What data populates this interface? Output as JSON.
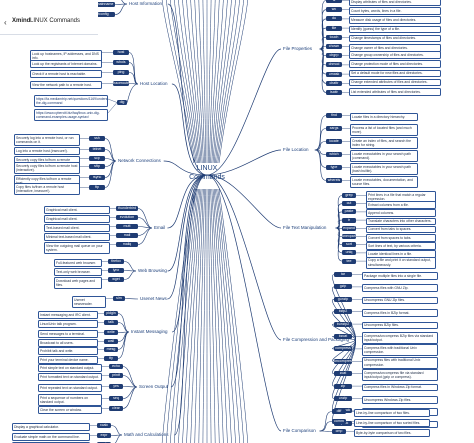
{
  "app": {
    "brand": "Xmind",
    "document_title": "LINUX Commands",
    "back_icon": "chevron-left-icon"
  },
  "center": {
    "line1": "LINUX",
    "line2": "Commands"
  },
  "topics": {
    "host_information": "Host Information",
    "host_location": "Host Location",
    "network_connections": "Network Connections",
    "email": "Email",
    "web_browsing": "Web Browsing",
    "usenet_news": "Usenet News",
    "instant_messaging": "Instant Messaging",
    "screen_output": "Screen Output",
    "math_calculations": "Math and Calculations",
    "file_properties": "File Properties",
    "file_location": "File Location",
    "file_text_manipulation": "File Text Manipulation",
    "file_compression": "File Compression and Packaging",
    "file_comparison": "File Comparison"
  },
  "host_information": {
    "items": [
      {
        "desc": "Same as hostname -d",
        "cmd": "dnsdomainname"
      },
      {
        "desc": "Same as hostname -n",
        "cmd": "domainname"
      },
      {
        "desc": "Older command to see and display network interface information.",
        "cmd": "ifconfig"
      }
    ]
  },
  "host_location": {
    "items": [
      {
        "desc": "Look up hostnames, IP addresses, and DNS info.",
        "cmd": "host"
      },
      {
        "desc": "Look up the registrants of Internet domains.",
        "cmd": "whois"
      },
      {
        "desc": "Check if a remote host is reachable.",
        "cmd": "ping"
      },
      {
        "desc": "View the network path to a remote host.",
        "cmd": "traceroute"
      }
    ],
    "links": [
      "https://fa.mediamtrip.net/questions/1169/understanding-the-dig-command",
      "https://www.cyberciti.biz/faq/linux-unix-dig-command-examples-usage-syntax/"
    ],
    "dig_cmd": "dig"
  },
  "network_connections": {
    "items": [
      {
        "desc": "Securely log into a remote host, or run commands on it.",
        "cmd": "ssh"
      },
      {
        "desc": "Log into a remote host (insecure!).",
        "cmd": "telnet"
      },
      {
        "desc": "Securely copy files to/from a remote host.",
        "cmd": "scp"
      },
      {
        "desc": "Securely copy files to/from a remote host (interactive).",
        "cmd": "sftp"
      },
      {
        "desc": "Efficiently copy files to/from a remote host.",
        "cmd": "rsync"
      },
      {
        "desc": "Copy files to/from a remote host (interactive, insecure!).",
        "cmd": "ftp"
      }
    ]
  },
  "email": {
    "items": [
      {
        "desc": "Graphical mail client.",
        "cmd": "thunderbird"
      },
      {
        "desc": "Graphical mail client.",
        "cmd": "evolution"
      },
      {
        "desc": "Text-based mail client.",
        "cmd": "mutt"
      },
      {
        "desc": "Minimal text-based mail client.",
        "cmd": "mail"
      },
      {
        "desc": "View the outgoing mail queue on your system.",
        "cmd": "mailq"
      }
    ]
  },
  "web_browsing": {
    "items": [
      {
        "desc": "Full-featured web browser.",
        "cmd": "firefox"
      },
      {
        "desc": "Text-only web browser.",
        "cmd": "lynx"
      },
      {
        "desc": "Download web pages and files.",
        "cmd": "wget"
      }
    ]
  },
  "usenet_news": {
    "items": [
      {
        "desc": "Usenet newsreader.",
        "cmd": "slrn"
      }
    ]
  },
  "instant_messaging": {
    "items": [
      {
        "desc": "Instant messaging and IRC client.",
        "cmd": "pidgin"
      },
      {
        "desc": "Linux/Unix talk program.",
        "cmd": "talk"
      },
      {
        "desc": "Send messages to a terminal.",
        "cmd": "write"
      },
      {
        "desc": "Broadcast to all users.",
        "cmd": "wall"
      },
      {
        "desc": "Prohibit talk and write.",
        "cmd": "mesg"
      },
      {
        "desc": "Print your terminal device name.",
        "cmd": "tty"
      }
    ]
  },
  "screen_output": {
    "items": [
      {
        "desc": "Print simple text on standard output.",
        "cmd": "echo"
      },
      {
        "desc": "Print formatted text on standard output.",
        "cmd": "printf"
      },
      {
        "desc": "Print repeated text on standard output.",
        "cmd": "yes"
      },
      {
        "desc": "Print a sequence of numbers on standard output.",
        "cmd": "seq"
      },
      {
        "desc": "Clear the screen or window.",
        "cmd": "clear"
      }
    ]
  },
  "math_calculations": {
    "items": [
      {
        "desc": "Display a graphical calculator.",
        "cmd": "xcalc"
      },
      {
        "desc": "Evaluate simple math on the command line.",
        "cmd": "expr"
      },
      {
        "desc": "Display a calendar.",
        "cmd": "cal"
      }
    ]
  },
  "file_properties": {
    "items": [
      {
        "cmd": "ls",
        "desc": "Display attributes of files and directories."
      },
      {
        "cmd": "wc",
        "desc": "Count bytes, words, lines in a file."
      },
      {
        "cmd": "du",
        "desc": "Measure disk usage of files and directories."
      },
      {
        "cmd": "file",
        "desc": "Identify (guess) the type of a file."
      },
      {
        "cmd": "touch",
        "desc": "Change timestamps of files and directories."
      },
      {
        "cmd": "chown",
        "desc": "Change owner of files and directories."
      },
      {
        "cmd": "chgrp",
        "desc": "Change group ownership of files and directories."
      },
      {
        "cmd": "chmod",
        "desc": "Change protection mode of files and directories."
      },
      {
        "cmd": "umask",
        "desc": "Set a default mode for new files and directories."
      },
      {
        "cmd": "chattr",
        "desc": "Change extended attributes of files and directories."
      },
      {
        "cmd": "lsattr",
        "desc": "List extended attributes of files and directories."
      }
    ]
  },
  "file_location": {
    "items": [
      {
        "cmd": "find",
        "desc": "Locate files in a directory hierarchy."
      },
      {
        "cmd": "xargs",
        "desc": "Process a list of located files (and much more)."
      },
      {
        "cmd": "locate",
        "desc": "Create an index of files, and search the index for string."
      },
      {
        "cmd": "which",
        "desc": "Locate executables in your search path (command)."
      },
      {
        "cmd": "type",
        "desc": "Locate executables in your search path (bash builtin)."
      },
      {
        "cmd": "whereis",
        "desc": "Locate executables, documentation, and source files."
      }
    ]
  },
  "file_text_manipulation": {
    "items": [
      {
        "cmd": "grep",
        "desc": "Print lines in a file that match a regular expression."
      },
      {
        "cmd": "cut",
        "desc": "Extract columns from a file."
      },
      {
        "cmd": "paste",
        "desc": "Append columns."
      },
      {
        "cmd": "tr",
        "desc": "Translate characters into other characters."
      },
      {
        "cmd": "expand",
        "desc": "Convert from tabs to spaces."
      },
      {
        "cmd": "unexpand",
        "desc": "Convert from spaces to tabs."
      },
      {
        "cmd": "sort",
        "desc": "Sort lines of text, by various criteria."
      },
      {
        "cmd": "uniq",
        "desc": "Locate identical lines in a file."
      },
      {
        "cmd": "tee",
        "desc": "Copy a file and print it on standard output, simultaneously."
      }
    ]
  },
  "file_compression": {
    "items": [
      {
        "cmd": "tar",
        "desc": "Package multiple files into a single file."
      },
      {
        "cmd": "gzip",
        "desc": "Compress files with GNU Zip."
      },
      {
        "cmd": "gunzip",
        "desc": "Uncompress GNU Zip files."
      },
      {
        "cmd": "bzip2",
        "desc": "Compress files in BZip format."
      },
      {
        "cmd": "bunzip2",
        "desc": "Uncompress BZip files."
      },
      {
        "cmd": "bzcat",
        "desc": "Compress/uncompress BZip files via standard input/output."
      },
      {
        "cmd": "compress",
        "desc": "Compress files with traditional Unix compression."
      },
      {
        "cmd": "uncompress",
        "desc": "Uncompress files with traditional Unix compression."
      },
      {
        "cmd": "zcat",
        "desc": "Compress/uncompress file via standard input/output (gzip or compress)."
      },
      {
        "cmd": "zip",
        "desc": "Compress files in Windows Zip format."
      },
      {
        "cmd": "unzip",
        "desc": "Uncompress Windows Zip files."
      },
      {
        "cmd": "munpack",
        "desc": "Extract MIME data to files."
      },
      {
        "cmd": "mpack",
        "desc": "Convert a file into MIME format."
      }
    ]
  },
  "file_comparison": {
    "items": [
      {
        "cmd": "diff",
        "desc": "Line-by-line comparison of two files."
      },
      {
        "cmd": "comm",
        "desc": "Line-by-line comparison of two sorted files."
      },
      {
        "cmd": "cmp",
        "desc": "Byte-by-byte comparison of two files."
      },
      {
        "cmd": "md5sum",
        "desc": "Compute checksums of the given files."
      }
    ]
  },
  "colors": {
    "line": "#1f3c73",
    "cmd_fill": "#1f3c73",
    "box_border": "#2f5597",
    "topic_text": "#1c3f7a"
  }
}
